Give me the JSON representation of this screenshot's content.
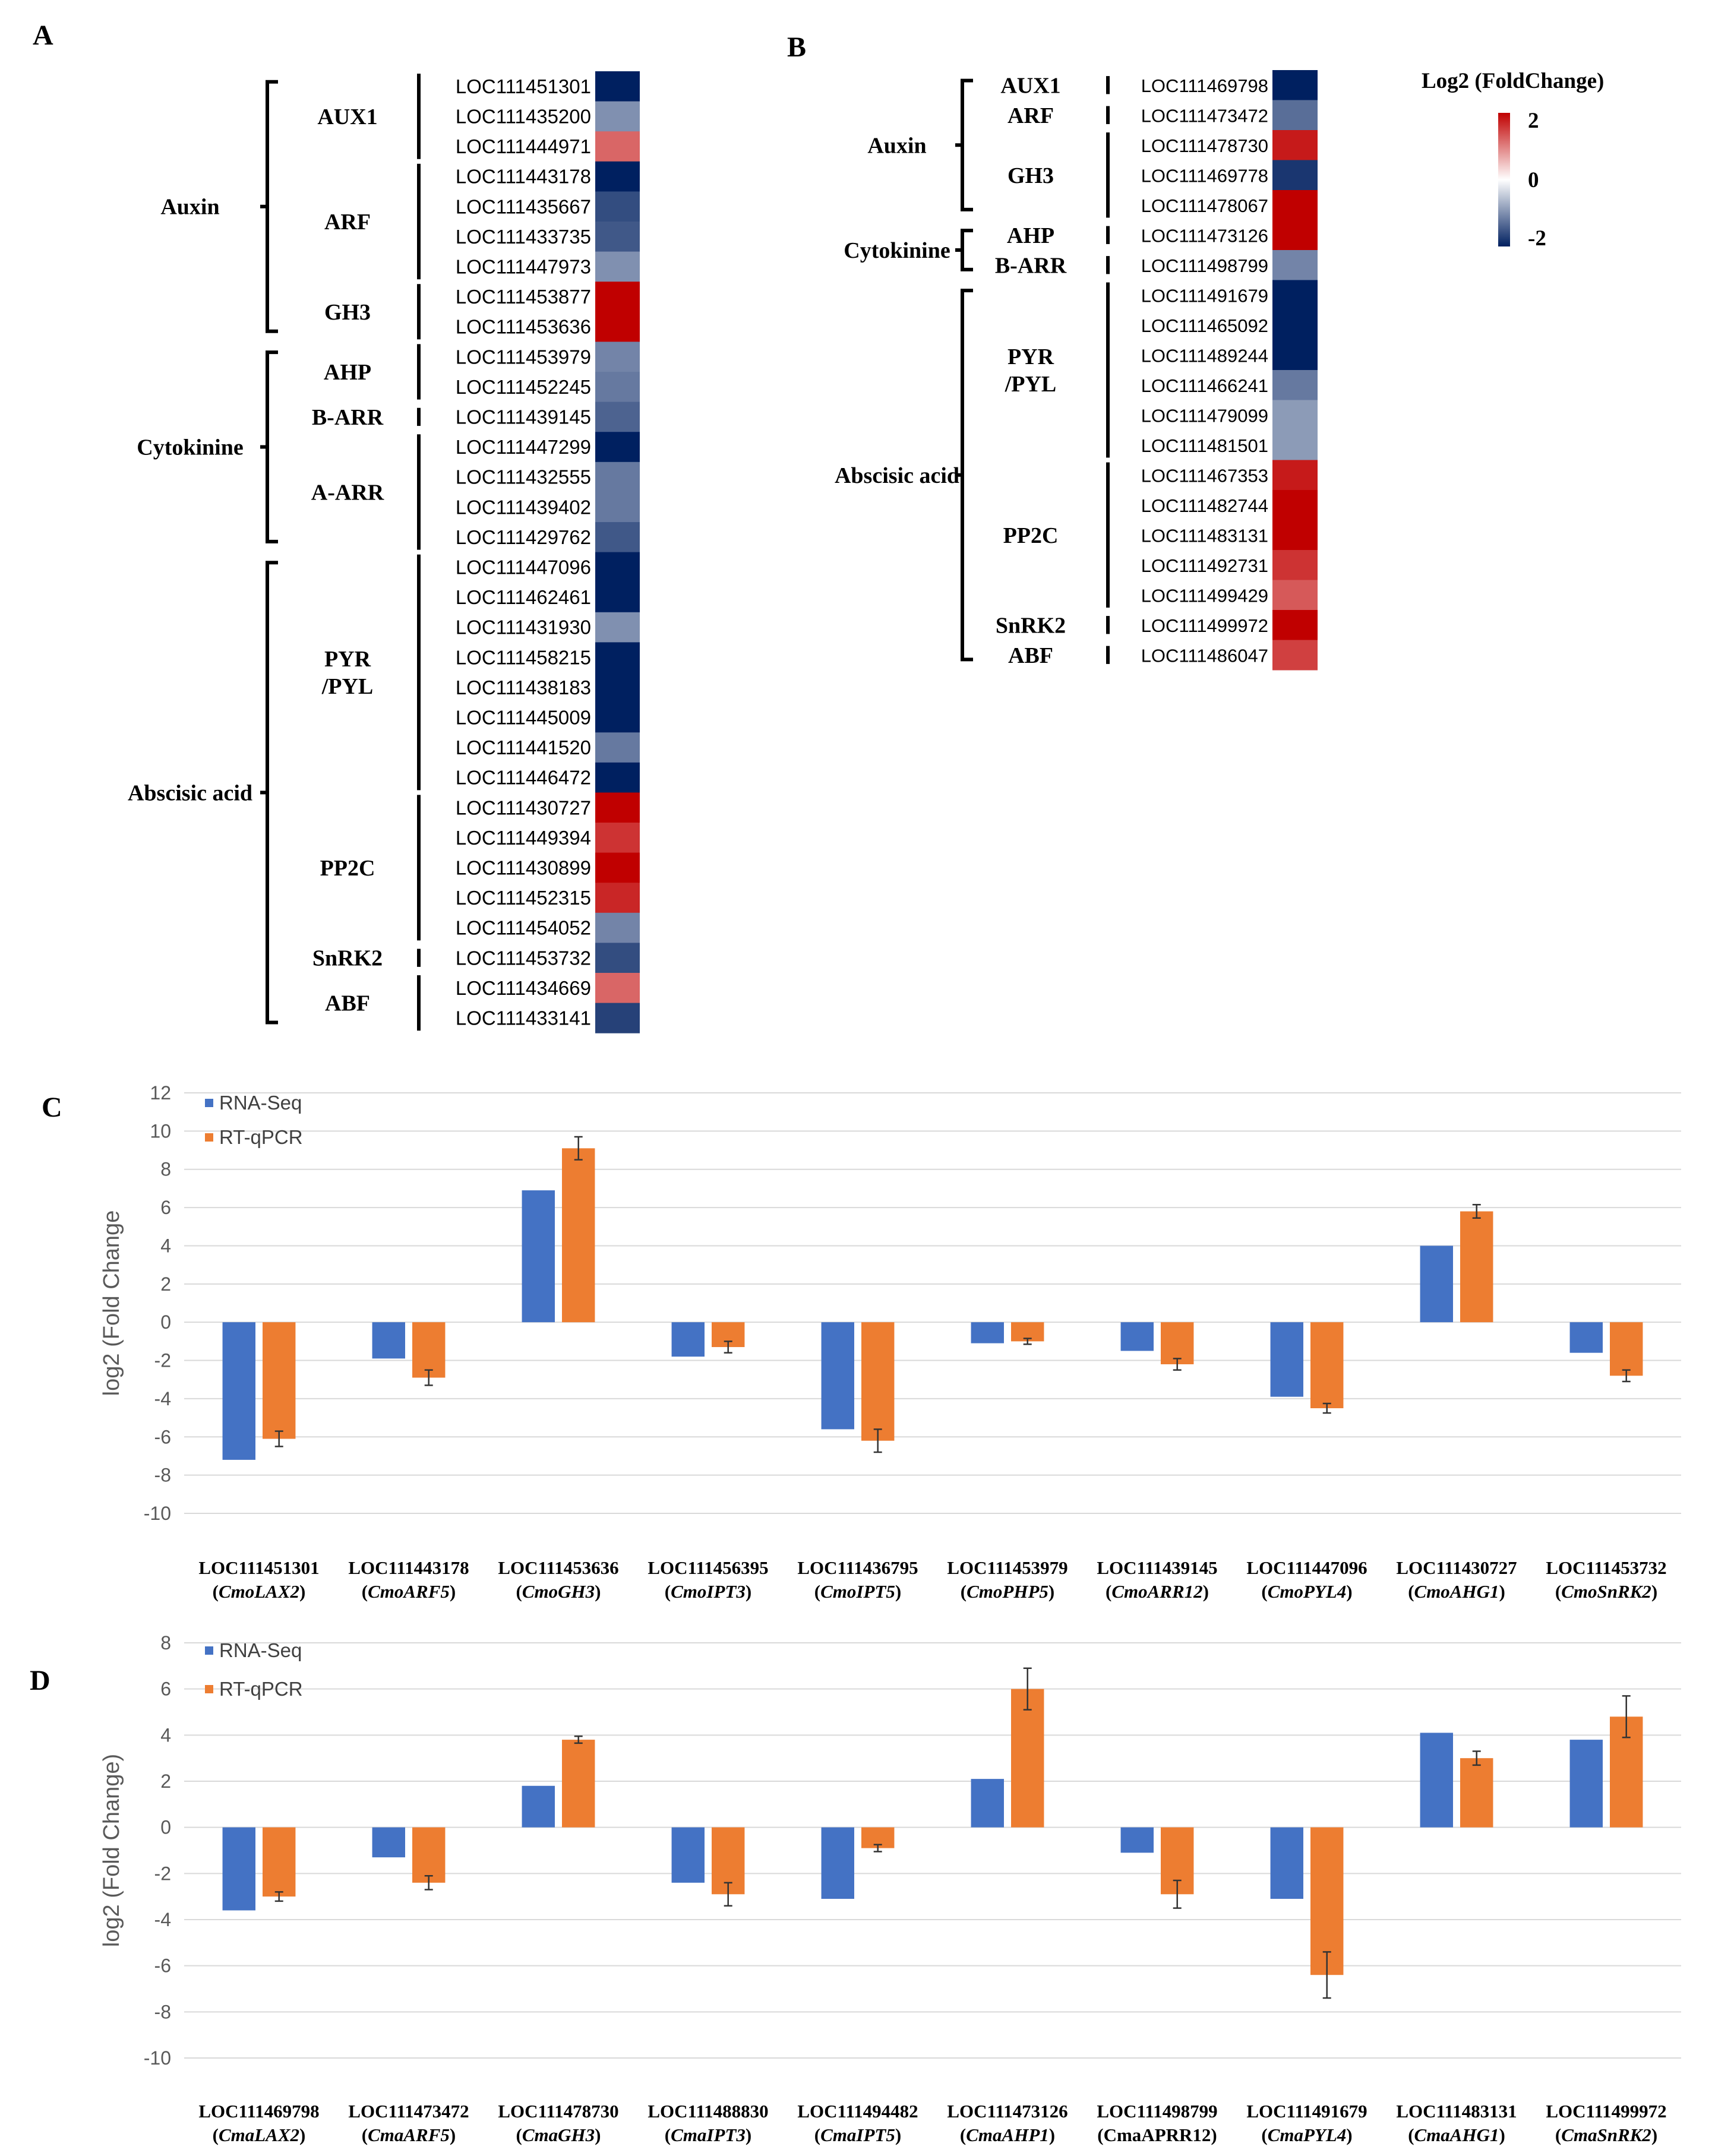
{
  "panel_labels": {
    "a": "A",
    "b": "B",
    "c": "C",
    "d": "D"
  },
  "colors": {
    "red": "#c00000",
    "white": "#ffffff",
    "navy": "#002060",
    "blue_bar": "#4472c4",
    "orange_bar": "#ed7d31",
    "grid": "#d9d9d9"
  },
  "legend": {
    "title": "Log2 (FoldChange)",
    "max": "2",
    "mid": "0",
    "min": "-2"
  },
  "chart_data": [
    {
      "type": "heatmap",
      "panel": "A",
      "hormones": [
        {
          "name": "Auxin",
          "families": [
            {
              "name": "AUX1",
              "genes": [
                {
                  "id": "LOC111451301",
                  "value": -2.0
                },
                {
                  "id": "LOC111435200",
                  "value": -1.0
                },
                {
                  "id": "LOC111444971",
                  "value": 1.2
                }
              ]
            },
            {
              "name": "ARF",
              "genes": [
                {
                  "id": "LOC111443178",
                  "value": -2.0
                },
                {
                  "id": "LOC111435667",
                  "value": -1.6
                },
                {
                  "id": "LOC111433735",
                  "value": -1.5
                },
                {
                  "id": "LOC111447973",
                  "value": -1.0
                }
              ]
            },
            {
              "name": "GH3",
              "genes": [
                {
                  "id": "LOC111453877",
                  "value": 2.0
                },
                {
                  "id": "LOC111453636",
                  "value": 2.0
                }
              ]
            }
          ]
        },
        {
          "name": "Cytokinine",
          "families": [
            {
              "name": "AHP",
              "genes": [
                {
                  "id": "LOC111453979",
                  "value": -1.1
                },
                {
                  "id": "LOC111452245",
                  "value": -1.2
                }
              ]
            },
            {
              "name": "B-ARR",
              "genes": [
                {
                  "id": "LOC111439145",
                  "value": -1.4
                }
              ]
            },
            {
              "name": "A-ARR",
              "genes": [
                {
                  "id": "LOC111447299",
                  "value": -2.0
                },
                {
                  "id": "LOC111432555",
                  "value": -1.2
                },
                {
                  "id": "LOC111439402",
                  "value": -1.2
                },
                {
                  "id": "LOC111429762",
                  "value": -1.5
                }
              ]
            }
          ]
        },
        {
          "name": "Abscisic acid",
          "families": [
            {
              "name": "PYR\n/PYL",
              "genes": [
                {
                  "id": "LOC111447096",
                  "value": -2.0
                },
                {
                  "id": "LOC111462461",
                  "value": -2.0
                },
                {
                  "id": "LOC111431930",
                  "value": -1.0
                },
                {
                  "id": "LOC111458215",
                  "value": -2.0
                },
                {
                  "id": "LOC111438183",
                  "value": -2.0
                },
                {
                  "id": "LOC111445009",
                  "value": -2.0
                },
                {
                  "id": "LOC111441520",
                  "value": -1.2
                },
                {
                  "id": "LOC111446472",
                  "value": -2.0
                }
              ]
            },
            {
              "name": "PP2C",
              "genes": [
                {
                  "id": "LOC111430727",
                  "value": 2.0
                },
                {
                  "id": "LOC111449394",
                  "value": 1.6
                },
                {
                  "id": "LOC111430899",
                  "value": 2.0
                },
                {
                  "id": "LOC111452315",
                  "value": 1.7
                },
                {
                  "id": "LOC111454052",
                  "value": -1.1
                }
              ]
            },
            {
              "name": "SnRK2",
              "genes": [
                {
                  "id": "LOC111453732",
                  "value": -1.6
                }
              ]
            },
            {
              "name": "ABF",
              "genes": [
                {
                  "id": "LOC111434669",
                  "value": 1.2
                },
                {
                  "id": "LOC111433141",
                  "value": -1.7
                }
              ]
            }
          ]
        }
      ]
    },
    {
      "type": "heatmap",
      "panel": "B",
      "hormones": [
        {
          "name": "Auxin",
          "families": [
            {
              "name": "AUX1",
              "genes": [
                {
                  "id": "LOC111469798",
                  "value": -2.0
                }
              ]
            },
            {
              "name": "ARF",
              "genes": [
                {
                  "id": "LOC111473472",
                  "value": -1.3
                }
              ]
            },
            {
              "name": "GH3",
              "genes": [
                {
                  "id": "LOC111478730",
                  "value": 1.8
                },
                {
                  "id": "LOC111469778",
                  "value": -1.8
                },
                {
                  "id": "LOC111478067",
                  "value": 2.0
                }
              ]
            }
          ]
        },
        {
          "name": "Cytokinine",
          "families": [
            {
              "name": "AHP",
              "genes": [
                {
                  "id": "LOC111473126",
                  "value": 2.0
                }
              ]
            },
            {
              "name": "B-ARR",
              "genes": [
                {
                  "id": "LOC111498799",
                  "value": -1.1
                }
              ]
            }
          ]
        },
        {
          "name": "Abscisic acid",
          "families": [
            {
              "name": "PYR\n/PYL",
              "genes": [
                {
                  "id": "LOC111491679",
                  "value": -2.0
                },
                {
                  "id": "LOC111465092",
                  "value": -2.0
                },
                {
                  "id": "LOC111489244",
                  "value": -2.0
                },
                {
                  "id": "LOC111466241",
                  "value": -1.2
                },
                {
                  "id": "LOC111479099",
                  "value": -0.9
                },
                {
                  "id": "LOC111481501",
                  "value": -0.9
                }
              ]
            },
            {
              "name": "PP2C",
              "genes": [
                {
                  "id": "LOC111467353",
                  "value": 1.8
                },
                {
                  "id": "LOC111482744",
                  "value": 2.0
                },
                {
                  "id": "LOC111483131",
                  "value": 2.0
                },
                {
                  "id": "LOC111492731",
                  "value": 1.6
                },
                {
                  "id": "LOC111499429",
                  "value": 1.3
                }
              ]
            },
            {
              "name": "SnRK2",
              "genes": [
                {
                  "id": "LOC111499972",
                  "value": 2.0
                }
              ]
            },
            {
              "name": "ABF",
              "genes": [
                {
                  "id": "LOC111486047",
                  "value": 1.5
                }
              ]
            }
          ]
        }
      ]
    },
    {
      "type": "bar",
      "panel": "C",
      "ylabel": "log2 (Fold Change",
      "ylim": [
        -10,
        12
      ],
      "yticks": [
        12,
        10,
        8,
        6,
        4,
        2,
        0,
        -2,
        -4,
        -6,
        -8,
        -10
      ],
      "grid": true,
      "legend_position": "top-left",
      "categories": [
        {
          "id": "LOC111451301",
          "name": "CmoLAX2",
          "italic": true
        },
        {
          "id": "LOC111443178",
          "name": "CmoARF5",
          "italic": true
        },
        {
          "id": "LOC111453636",
          "name": "CmoGH3",
          "italic": true
        },
        {
          "id": "LOC111456395",
          "name": "CmoIPT3",
          "italic": true
        },
        {
          "id": "LOC111436795",
          "name": "CmoIPT5",
          "italic": true
        },
        {
          "id": "LOC111453979",
          "name": "CmoPHP5",
          "italic": true
        },
        {
          "id": "LOC111439145",
          "name": "CmoARR12",
          "italic": true
        },
        {
          "id": "LOC111447096",
          "name": "CmoPYL4",
          "italic": true
        },
        {
          "id": "LOC111430727",
          "name": "CmoAHG1",
          "italic": true
        },
        {
          "id": "LOC111453732",
          "name": "CmoSnRK2",
          "italic": true
        }
      ],
      "series": [
        {
          "name": "RNA-Seq",
          "values": [
            -7.2,
            -1.9,
            6.9,
            -1.8,
            -5.6,
            -1.1,
            -1.5,
            -3.9,
            4.0,
            -1.6
          ]
        },
        {
          "name": "RT-qPCR",
          "values": [
            -6.1,
            -2.9,
            9.1,
            -1.3,
            -6.2,
            -1.0,
            -2.2,
            -4.5,
            5.8,
            -2.8
          ],
          "errors": [
            0.4,
            0.4,
            0.6,
            0.3,
            0.6,
            0.15,
            0.3,
            0.25,
            0.35,
            0.3
          ]
        }
      ]
    },
    {
      "type": "bar",
      "panel": "D",
      "ylabel": "log2 (Fold Change)",
      "ylim": [
        -10,
        8
      ],
      "yticks": [
        8,
        6,
        4,
        2,
        0,
        -2,
        -4,
        -6,
        -8,
        -10
      ],
      "grid": true,
      "legend_position": "top-left",
      "categories": [
        {
          "id": "LOC111469798",
          "name": "CmaLAX2",
          "italic": true
        },
        {
          "id": "LOC111473472",
          "name": "CmaARF5",
          "italic": true
        },
        {
          "id": "LOC111478730",
          "name": "CmaGH3",
          "italic": true
        },
        {
          "id": "LOC111488830",
          "name": "CmaIPT3",
          "italic": true
        },
        {
          "id": "LOC111494482",
          "name": "CmaIPT5",
          "italic": true
        },
        {
          "id": "LOC111473126",
          "name": "CmaAHP1",
          "italic": true
        },
        {
          "id": "LOC111498799",
          "name": "CmaAPRR12",
          "italic": false
        },
        {
          "id": "LOC111491679",
          "name": "CmaPYL4",
          "italic": true
        },
        {
          "id": "LOC111483131",
          "name": "CmaAHG1",
          "italic": true
        },
        {
          "id": "LOC111499972",
          "name": "CmaSnRK2",
          "italic": true
        }
      ],
      "series": [
        {
          "name": "RNA-Seq",
          "values": [
            -3.6,
            -1.3,
            1.8,
            -2.4,
            -3.1,
            2.1,
            -1.1,
            -3.1,
            4.1,
            3.8
          ]
        },
        {
          "name": "RT-qPCR",
          "values": [
            -3.0,
            -2.4,
            3.8,
            -2.9,
            -0.9,
            6.0,
            -2.9,
            -6.4,
            3.0,
            4.8
          ],
          "errors": [
            0.2,
            0.3,
            0.15,
            0.5,
            0.15,
            0.9,
            0.6,
            1.0,
            0.3,
            0.9
          ]
        }
      ]
    }
  ]
}
